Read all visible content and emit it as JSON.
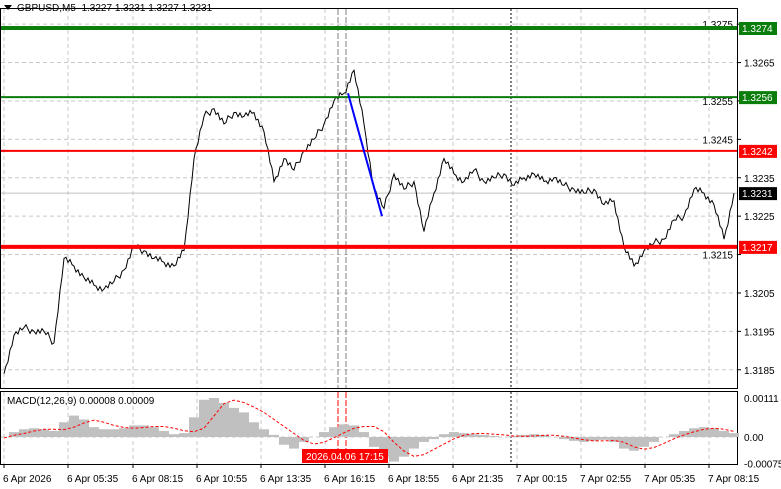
{
  "header": {
    "symbol": "GBPUSD,M5",
    "ohlc": "1.3227 1.3231 1.3227 1.3231"
  },
  "macd_label": "MACD(12,26,9) 0.00008 0.00009",
  "crosshair_time_label": "2026.04.06 17:15",
  "colors": {
    "support_resistance_green": "#0a7d0a",
    "support_resistance_red": "#ff0000",
    "trend_line": "#0000ff",
    "price_line": "#000000",
    "macd_histogram": "#c0c0c0",
    "macd_signal": "#ff0000"
  },
  "chart_data": [
    {
      "type": "line",
      "title": "GBPUSD,M5",
      "ylim": [
        1.318,
        1.3279
      ],
      "y_ticks": [
        "1.3275",
        "1.3265",
        "1.3255",
        "1.3245",
        "1.3235",
        "1.3225",
        "1.3215",
        "1.3205",
        "1.3195",
        "1.3185"
      ],
      "x_ticks": [
        "6 Apr 2026",
        "6 Apr 05:35",
        "6 Apr 08:15",
        "6 Apr 10:55",
        "6 Apr 13:35",
        "6 Apr 16:15",
        "6 Apr 18:55",
        "6 Apr 21:35",
        "7 Apr 00:15",
        "7 Apr 02:55",
        "7 Apr 05:35",
        "7 Apr 08:15"
      ],
      "grid": true,
      "price_series": [
        1.3184,
        1.3194,
        1.3196,
        1.3195,
        1.3195,
        1.3192,
        1.3214,
        1.3212,
        1.3209,
        1.3207,
        1.3206,
        1.3208,
        1.3211,
        1.3217,
        1.3216,
        1.3214,
        1.3213,
        1.3212,
        1.3216,
        1.324,
        1.3251,
        1.3253,
        1.3249,
        1.3252,
        1.3251,
        1.3252,
        1.3247,
        1.3234,
        1.324,
        1.3237,
        1.3242,
        1.3245,
        1.3249,
        1.3255,
        1.3257,
        1.3263,
        1.3249,
        1.3232,
        1.3227,
        1.3236,
        1.3232,
        1.3234,
        1.3221,
        1.3231,
        1.324,
        1.3236,
        1.3234,
        1.3237,
        1.3234,
        1.3235,
        1.3236,
        1.3233,
        1.3235,
        1.3236,
        1.3234,
        1.3235,
        1.3233,
        1.3232,
        1.3231,
        1.3232,
        1.3228,
        1.3229,
        1.3217,
        1.3212,
        1.3216,
        1.3218,
        1.3219,
        1.3224,
        1.3225,
        1.3232,
        1.3231,
        1.3228,
        1.3219,
        1.3231
      ],
      "levels": [
        {
          "price": "1.3274",
          "color": "green",
          "weight": "thick"
        },
        {
          "price": "1.3256",
          "color": "green",
          "weight": "normal"
        },
        {
          "price": "1.3242",
          "color": "red",
          "weight": "normal"
        },
        {
          "price": "1.3217",
          "color": "red",
          "weight": "thick"
        }
      ],
      "current_price": "1.3231",
      "trend_line": {
        "from_price": 1.3257,
        "to_price": 1.3225
      }
    },
    {
      "type": "bar",
      "title": "MACD(12,26,9) 0.00008 0.00009",
      "ylim": [
        -0.00075,
        0.00111
      ],
      "y_ticks": [
        "0.00111",
        "0.00",
        "-0.00075"
      ],
      "histogram": [
        0,
        0.00014,
        0.00022,
        0.00025,
        0.00022,
        0.00017,
        0.00042,
        0.00061,
        0.0005,
        0.00028,
        0.00022,
        0.00022,
        0.00025,
        0.00033,
        0.00033,
        0.00028,
        0.00017,
        8e-05,
        0.00011,
        0.00056,
        0.00106,
        0.00111,
        0.00097,
        0.00083,
        0.0007,
        0.00042,
        0.00022,
        6e-05,
        -0.00022,
        -0.00033,
        -0.00014,
        0,
        0.00014,
        0.00028,
        0.00036,
        0.00033,
        0.00014,
        -0.00028,
        -0.00056,
        -0.0007,
        -0.00056,
        -0.00033,
        -0.00014,
        -6e-05,
        8e-05,
        0.00014,
        0.00011,
        8e-05,
        6e-05,
        3e-05,
        0,
        3e-05,
        6e-05,
        8e-05,
        6e-05,
        0,
        -6e-05,
        -0.00011,
        -0.00014,
        -0.00011,
        -8e-05,
        -0.00014,
        -0.00033,
        -0.00039,
        -0.00028,
        -0.00014,
        0,
        8e-05,
        0.00017,
        0.00025,
        0.00028,
        0.00025,
        0.00017,
        0.00011
      ],
      "signal": [
        -3e-05,
        5e-05,
        0.0001,
        0.00017,
        0.00022,
        0.00022,
        0.00021,
        0.00028,
        0.0004,
        0.00048,
        0.00042,
        0.00033,
        0.00027,
        0.00025,
        0.00027,
        0.0003,
        0.0003,
        0.00025,
        0.00018,
        0.00015,
        0.00025,
        0.0006,
        0.00095,
        0.00105,
        0.00098,
        0.00085,
        0.0007,
        0.0005,
        0.0003,
        0.0001,
        -0.0001,
        -0.0002,
        -0.00015,
        -2e-05,
        0.00012,
        0.00025,
        0.0003,
        0.0003,
        0.00015,
        -0.00015,
        -0.0004,
        -0.00055,
        -0.0005,
        -0.00035,
        -0.0002,
        -5e-05,
        5e-05,
        0.0001,
        0.0001,
        8e-05,
        6e-05,
        3e-05,
        2e-05,
        3e-05,
        5e-05,
        5e-05,
        2e-05,
        -3e-05,
        -8e-05,
        -0.00011,
        -0.00011,
        -0.0001,
        -0.00015,
        -0.00028,
        -0.00035,
        -0.0003,
        -0.00018,
        -5e-05,
        6e-05,
        0.00015,
        0.00022,
        0.00025,
        0.00022,
        0.00016
      ]
    }
  ]
}
